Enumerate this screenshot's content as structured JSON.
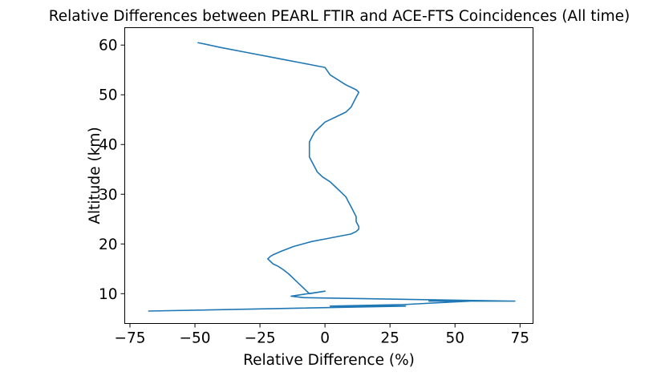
{
  "chart_data": {
    "type": "line",
    "title": "Relative Differences between PEARL FTIR and ACE-FTS Coincidences (All time)",
    "xlabel": "Relative Difference (%)",
    "ylabel": "Altitude (km)",
    "xlim": [
      -77,
      80
    ],
    "ylim": [
      4,
      63.5
    ],
    "xticks": [
      -75,
      -50,
      -25,
      0,
      25,
      50,
      75
    ],
    "xtick_labels": [
      "−75",
      "−50",
      "−25",
      "0",
      "25",
      "50",
      "75"
    ],
    "yticks": [
      10,
      20,
      30,
      40,
      50,
      60
    ],
    "ytick_labels": [
      "10",
      "20",
      "30",
      "40",
      "50",
      "60"
    ],
    "grid": false,
    "color": "#1f77b4",
    "series": [
      {
        "x": [
          -49,
          -40,
          -30,
          -20,
          -15,
          -10,
          -5,
          0,
          2,
          5,
          8,
          10,
          12,
          13,
          12,
          11,
          10,
          8,
          6,
          4,
          2,
          0,
          -2,
          -4,
          -5,
          -6,
          -6,
          -6,
          -6,
          -5,
          -4,
          -3,
          -1,
          2,
          4,
          6,
          8,
          9,
          10,
          11,
          12,
          12,
          13,
          13,
          12,
          10,
          5,
          0,
          -5,
          -12,
          -17,
          -20,
          -21,
          -22,
          -21,
          -20,
          -18,
          -16,
          -14,
          -12,
          -10,
          -8,
          -7,
          -6,
          0,
          -13,
          -8,
          73,
          40,
          56,
          30,
          2,
          31,
          -68
        ],
        "y": [
          60.5,
          59.5,
          58.5,
          57.5,
          57.0,
          56.5,
          56.0,
          55.5,
          54.0,
          53.0,
          52.0,
          51.5,
          51.0,
          50.5,
          49.5,
          48.5,
          47.5,
          46.5,
          46.0,
          45.5,
          45.0,
          44.5,
          43.5,
          42.5,
          41.5,
          40.5,
          39.5,
          38.5,
          37.5,
          36.5,
          35.5,
          34.5,
          33.5,
          32.5,
          31.5,
          30.5,
          29.5,
          28.5,
          27.5,
          26.5,
          25.5,
          24.5,
          23.5,
          23.0,
          22.5,
          22.0,
          21.5,
          21.0,
          20.5,
          19.5,
          18.5,
          17.8,
          17.5,
          17.0,
          16.5,
          16.0,
          15.5,
          14.8,
          14.0,
          13.0,
          12.0,
          11.0,
          10.5,
          10.0,
          10.5,
          9.5,
          9.2,
          8.5,
          8.5,
          8.5,
          7.8,
          7.5,
          7.5,
          6.5
        ]
      }
    ]
  }
}
